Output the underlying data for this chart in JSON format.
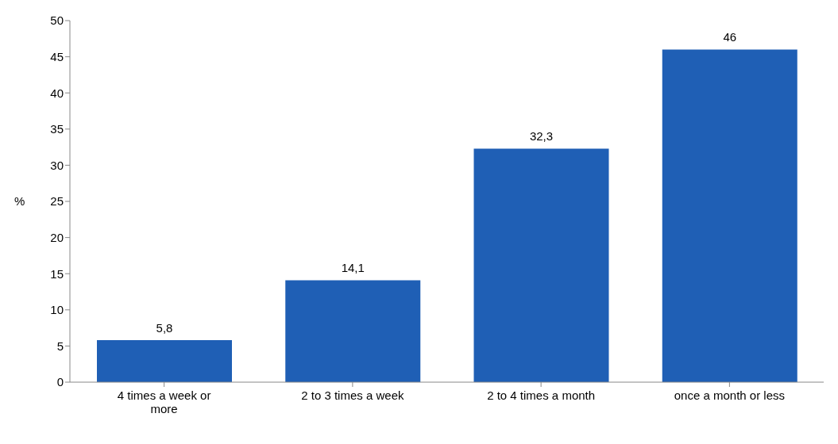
{
  "chart_data": {
    "type": "bar",
    "ylabel": "%",
    "categories": [
      "4 times a week or more",
      "2 to 3 times a week",
      "2 to 4 times a month",
      "once a month or less"
    ],
    "values": [
      5.8,
      14.1,
      32.3,
      46
    ],
    "value_labels": [
      "5,8",
      "14,1",
      "32,3",
      "46"
    ],
    "color": "#1f5fb5",
    "ylim": [
      0,
      50
    ],
    "yticks": [
      0,
      5,
      10,
      15,
      20,
      25,
      30,
      35,
      40,
      45,
      50
    ],
    "grid": false
  }
}
